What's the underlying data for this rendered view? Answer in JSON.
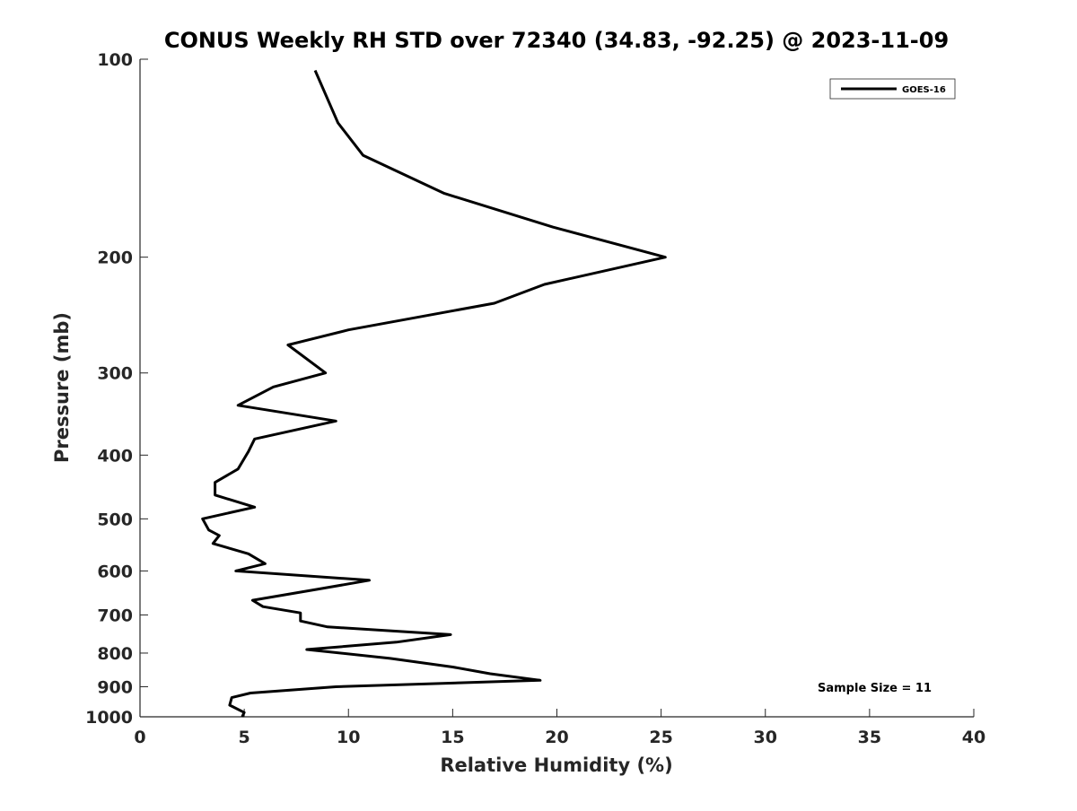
{
  "chart_data": {
    "type": "line",
    "title": "CONUS Weekly RH STD over 72340 (34.83, -92.25) @ 2023-11-09",
    "xlabel": "Relative Humidity (%)",
    "ylabel": "Pressure (mb)",
    "xlim": [
      0,
      40
    ],
    "ylim": [
      100,
      1000
    ],
    "y_scale": "log",
    "y_reversed": true,
    "x_ticks": [
      0,
      5,
      10,
      15,
      20,
      25,
      30,
      35,
      40
    ],
    "y_ticks": [
      100,
      200,
      300,
      400,
      500,
      600,
      700,
      800,
      900,
      1000
    ],
    "grid": false,
    "legend_position": "top-right",
    "line_color": "#000000",
    "series": [
      {
        "name": "GOES-16",
        "points": [
          [
            4.9,
            1000
          ],
          [
            5.0,
            985
          ],
          [
            4.3,
            960
          ],
          [
            4.4,
            935
          ],
          [
            5.3,
            920
          ],
          [
            9.4,
            900
          ],
          [
            19.2,
            880
          ],
          [
            16.8,
            860
          ],
          [
            15.0,
            840
          ],
          [
            12.0,
            815
          ],
          [
            8.0,
            790
          ],
          [
            12.3,
            770
          ],
          [
            14.9,
            750
          ],
          [
            9.0,
            730
          ],
          [
            7.7,
            715
          ],
          [
            7.7,
            695
          ],
          [
            5.9,
            680
          ],
          [
            5.4,
            665
          ],
          [
            8.5,
            640
          ],
          [
            11.0,
            620
          ],
          [
            4.6,
            600
          ],
          [
            6.0,
            585
          ],
          [
            5.2,
            565
          ],
          [
            3.5,
            545
          ],
          [
            3.8,
            530
          ],
          [
            3.3,
            520
          ],
          [
            3.0,
            500
          ],
          [
            5.5,
            480
          ],
          [
            3.6,
            460
          ],
          [
            3.6,
            440
          ],
          [
            4.7,
            420
          ],
          [
            5.2,
            395
          ],
          [
            5.5,
            378
          ],
          [
            9.4,
            355
          ],
          [
            4.7,
            336
          ],
          [
            6.4,
            315
          ],
          [
            8.9,
            300
          ],
          [
            7.1,
            272
          ],
          [
            10.0,
            258
          ],
          [
            17.0,
            235
          ],
          [
            19.4,
            220
          ],
          [
            25.2,
            200
          ],
          [
            19.8,
            180
          ],
          [
            14.6,
            160
          ],
          [
            10.7,
            140
          ],
          [
            9.5,
            125
          ],
          [
            8.4,
            104
          ]
        ]
      }
    ],
    "annotation": "Sample Size = 11"
  }
}
